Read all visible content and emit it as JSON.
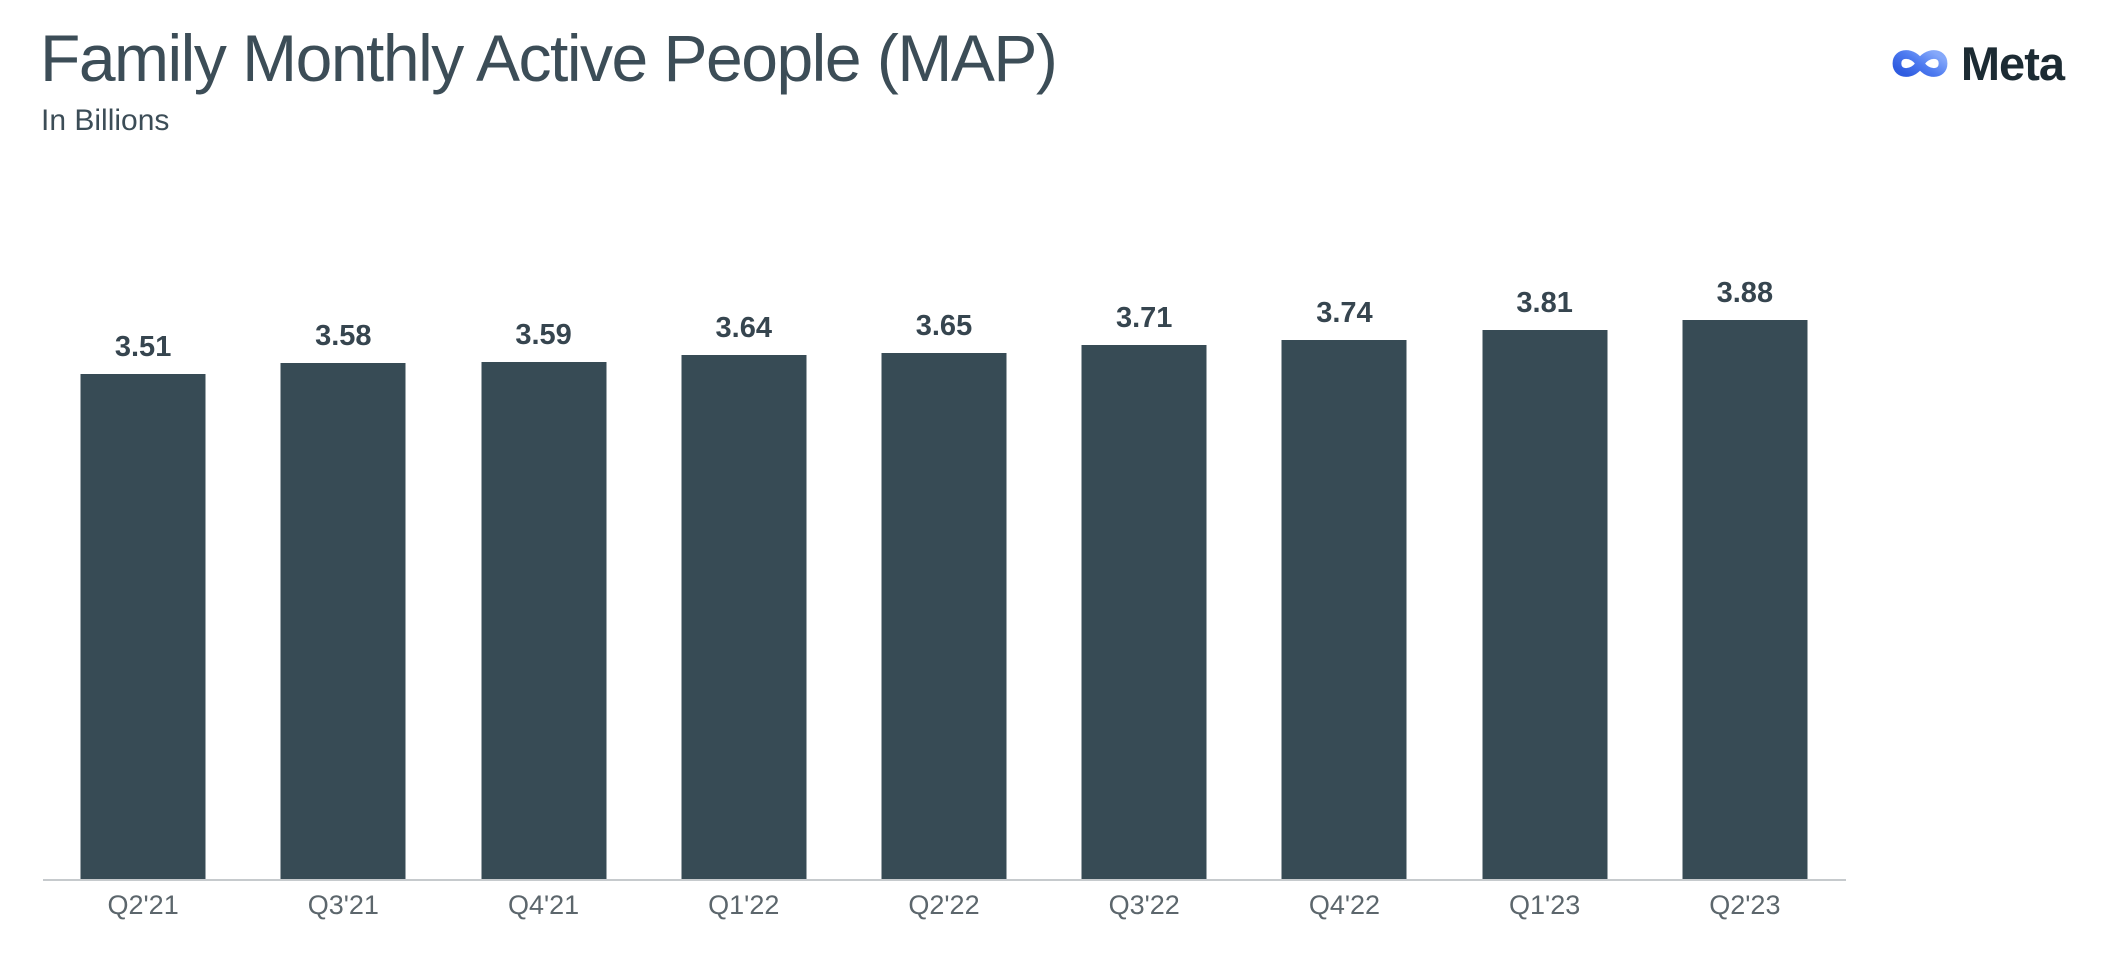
{
  "header": {
    "title": "Family Monthly Active People (MAP)",
    "subtitle": "In Billions"
  },
  "brand": {
    "name": "Meta",
    "icon": "meta-infinity-icon",
    "icon_gradient_start": "#2F5CE0",
    "icon_gradient_mid": "#4E7BF0",
    "icon_gradient_end": "#85A8FA",
    "wordmark_color": "#1C2B33"
  },
  "chart_data": {
    "type": "bar",
    "title": "Family Monthly Active People (MAP)",
    "subtitle": "In Billions",
    "categories": [
      "Q2'21",
      "Q3'21",
      "Q4'21",
      "Q1'22",
      "Q2'22",
      "Q3'22",
      "Q4'22",
      "Q1'23",
      "Q2'23"
    ],
    "values": [
      3.51,
      3.58,
      3.59,
      3.64,
      3.65,
      3.71,
      3.74,
      3.81,
      3.88
    ],
    "value_labels": [
      "3.51",
      "3.58",
      "3.59",
      "3.64",
      "3.65",
      "3.71",
      "3.74",
      "3.81",
      "3.88"
    ],
    "xlabel": "",
    "ylabel": "In Billions",
    "ylim": [
      0,
      4.0
    ],
    "grid": false,
    "legend": false,
    "bar_color": "#374B55",
    "value_label_color": "#36454F",
    "axis_line_color": "#C6CACD",
    "tick_label_color": "#5C666C"
  }
}
